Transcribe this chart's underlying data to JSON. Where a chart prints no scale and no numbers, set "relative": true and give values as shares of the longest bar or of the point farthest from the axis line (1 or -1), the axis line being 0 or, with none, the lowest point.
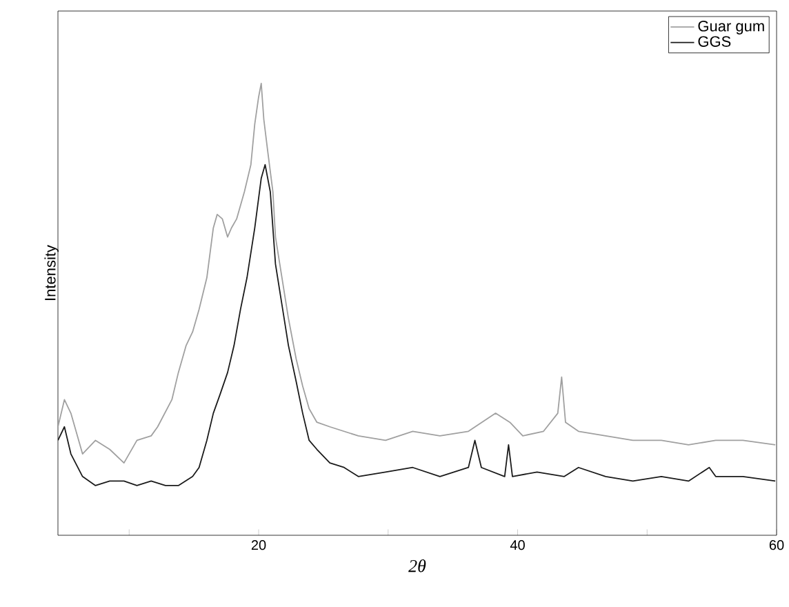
{
  "chart_data": {
    "type": "line",
    "xlabel": "2θ",
    "ylabel": "Intensity",
    "relative": true,
    "legend": "top right",
    "grid": false,
    "xlim": [
      4.5,
      60
    ],
    "xticks": [
      {
        "value": 10,
        "label": null
      },
      20,
      {
        "value": 30,
        "label": null
      },
      40,
      {
        "value": 50,
        "label": null
      },
      60
    ],
    "series": [
      {
        "name": "Guar gum",
        "color": "#a0a0a0",
        "x": [
          4.5,
          5.0,
          5.5,
          6.4,
          7.4,
          8.5,
          9.6,
          10.6,
          11.7,
          12.2,
          13.3,
          13.8,
          14.4,
          14.9,
          15.4,
          16.0,
          16.5,
          16.8,
          17.2,
          17.6,
          17.9,
          18.3,
          18.6,
          18.9,
          19.4,
          19.7,
          20.0,
          20.2,
          20.4,
          20.7,
          21.1,
          21.3,
          21.8,
          22.3,
          22.9,
          23.4,
          23.9,
          24.5,
          25.5,
          27.7,
          29.8,
          31.9,
          34.0,
          36.2,
          38.3,
          39.4,
          40.4,
          42.0,
          43.1,
          43.4,
          43.7,
          44.7,
          46.8,
          48.9,
          51.1,
          53.2,
          55.3,
          57.4,
          59.9
        ],
        "values": [
          0.24,
          0.3,
          0.27,
          0.18,
          0.21,
          0.19,
          0.16,
          0.21,
          0.22,
          0.24,
          0.3,
          0.36,
          0.42,
          0.45,
          0.5,
          0.57,
          0.68,
          0.71,
          0.7,
          0.66,
          0.68,
          0.7,
          0.73,
          0.76,
          0.82,
          0.91,
          0.97,
          1.0,
          0.92,
          0.85,
          0.76,
          0.66,
          0.57,
          0.48,
          0.39,
          0.33,
          0.28,
          0.25,
          0.24,
          0.22,
          0.21,
          0.23,
          0.22,
          0.23,
          0.27,
          0.25,
          0.22,
          0.23,
          0.27,
          0.35,
          0.25,
          0.23,
          0.22,
          0.21,
          0.21,
          0.2,
          0.21,
          0.21,
          0.2
        ]
      },
      {
        "name": "GGS",
        "color": "#1a1a1a",
        "x": [
          4.5,
          5.0,
          5.5,
          6.4,
          7.4,
          8.5,
          9.6,
          10.6,
          11.7,
          12.8,
          13.8,
          14.9,
          15.4,
          16.0,
          16.5,
          17.0,
          17.6,
          18.1,
          18.6,
          19.1,
          19.7,
          20.2,
          20.5,
          20.9,
          21.3,
          21.8,
          22.3,
          22.9,
          23.4,
          23.9,
          24.5,
          25.5,
          26.6,
          27.7,
          29.8,
          31.9,
          34.0,
          36.2,
          36.7,
          37.2,
          39.0,
          39.3,
          39.6,
          41.5,
          43.6,
          44.7,
          46.8,
          48.9,
          51.1,
          53.2,
          54.8,
          55.3,
          57.4,
          59.9
        ],
        "values": [
          0.21,
          0.24,
          0.18,
          0.13,
          0.11,
          0.12,
          0.12,
          0.11,
          0.12,
          0.11,
          0.11,
          0.13,
          0.15,
          0.21,
          0.27,
          0.31,
          0.36,
          0.42,
          0.5,
          0.57,
          0.68,
          0.79,
          0.82,
          0.76,
          0.6,
          0.51,
          0.42,
          0.34,
          0.27,
          0.21,
          0.19,
          0.16,
          0.15,
          0.13,
          0.14,
          0.15,
          0.13,
          0.15,
          0.21,
          0.15,
          0.13,
          0.2,
          0.13,
          0.14,
          0.13,
          0.15,
          0.13,
          0.12,
          0.13,
          0.12,
          0.15,
          0.13,
          0.13,
          0.12
        ]
      }
    ]
  }
}
